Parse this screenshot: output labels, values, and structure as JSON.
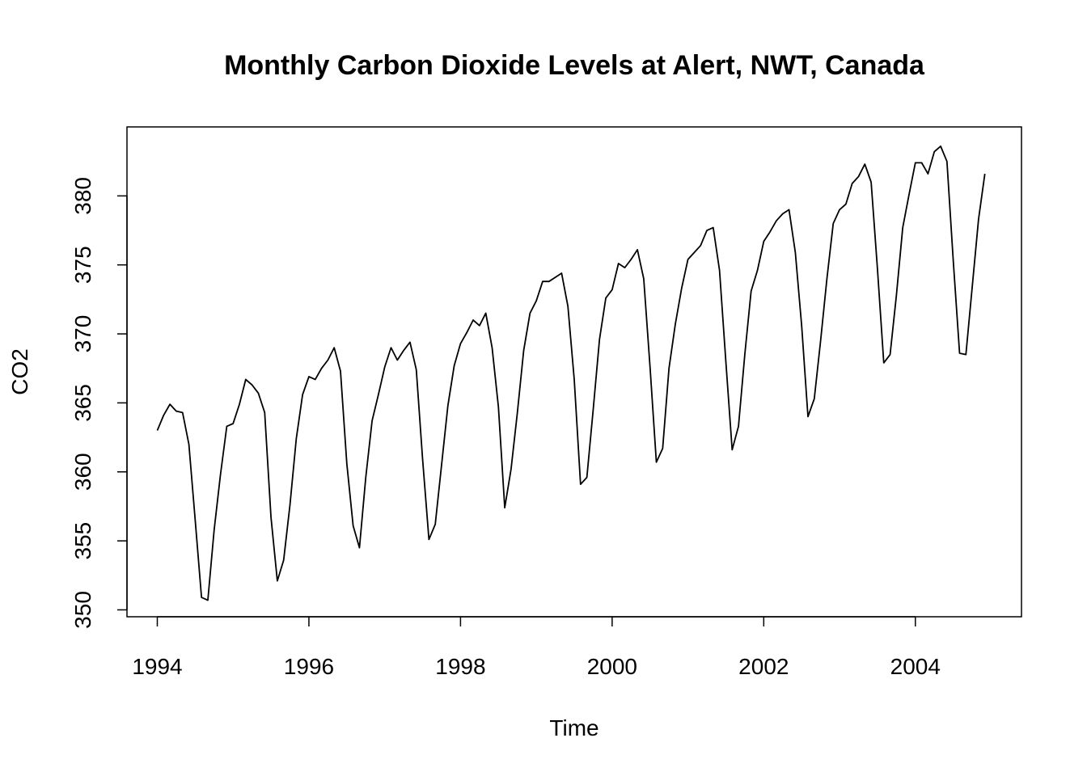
{
  "chart_data": {
    "type": "line",
    "title": "Monthly Carbon Dioxide Levels at Alert, NWT, Canada",
    "xlabel": "Time",
    "ylabel": "CO2",
    "xlim": [
      1993.6,
      2005.4
    ],
    "ylim": [
      349.5,
      385.0
    ],
    "x_ticks": [
      1994,
      1996,
      1998,
      2000,
      2002,
      2004
    ],
    "x_tick_labels": [
      "1994",
      "1996",
      "1998",
      "2000",
      "2002",
      "2004"
    ],
    "y_ticks": [
      350,
      355,
      360,
      365,
      370,
      375,
      380
    ],
    "y_tick_labels": [
      "350",
      "355",
      "360",
      "365",
      "370",
      "375",
      "380"
    ],
    "grid": false,
    "legend": "none",
    "start": 1994,
    "frequency": 12,
    "series": [
      {
        "color": "#000000",
        "values": [
          363.0,
          364.1,
          364.9,
          364.4,
          364.3,
          362.0,
          356.5,
          350.9,
          350.7,
          355.8,
          359.8,
          363.3,
          363.5,
          364.9,
          366.7,
          366.3,
          365.7,
          364.3,
          356.7,
          352.1,
          353.6,
          357.6,
          362.4,
          365.6,
          366.9,
          366.7,
          367.5,
          368.1,
          369.0,
          367.3,
          360.6,
          356.1,
          354.5,
          359.6,
          363.7,
          365.6,
          367.6,
          369.0,
          368.1,
          368.8,
          369.4,
          367.4,
          360.9,
          355.1,
          356.2,
          360.5,
          364.8,
          367.7,
          369.3,
          370.1,
          371.0,
          370.6,
          371.5,
          369.0,
          364.7,
          357.4,
          360.2,
          364.3,
          368.8,
          371.5,
          372.4,
          373.8,
          373.8,
          374.1,
          374.4,
          372.0,
          366.7,
          359.1,
          359.6,
          364.5,
          369.6,
          372.6,
          373.2,
          375.1,
          374.8,
          375.4,
          376.1,
          374.0,
          367.6,
          360.7,
          361.7,
          367.5,
          370.7,
          373.3,
          375.4,
          375.9,
          376.4,
          377.5,
          377.7,
          374.6,
          368.0,
          361.6,
          363.3,
          368.5,
          373.1,
          374.6,
          376.7,
          377.4,
          378.2,
          378.7,
          379.0,
          375.9,
          370.6,
          364.0,
          365.3,
          369.5,
          374.0,
          378.0,
          379.0,
          379.4,
          380.9,
          381.4,
          382.3,
          381.0,
          374.7,
          367.9,
          368.5,
          372.8,
          377.7,
          380.1,
          382.4,
          382.4,
          381.6,
          383.2,
          383.6,
          382.5,
          375.3,
          368.6,
          368.5,
          373.4,
          378.3,
          381.6
        ]
      }
    ]
  }
}
